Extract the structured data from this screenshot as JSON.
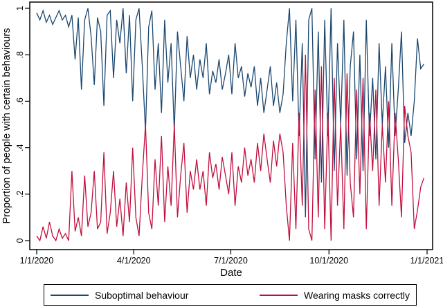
{
  "figure": {
    "background": "#ffffff",
    "axis_color": "#000000"
  },
  "chart_data": {
    "type": "line",
    "title": "",
    "xlabel": "Date",
    "ylabel": "Proportion of people with certain behaviours",
    "xlim_days": [
      0,
      366
    ],
    "ylim": [
      0,
      1
    ],
    "grid": false,
    "legend_position": "bottom",
    "x_tick_days": [
      0,
      91,
      182,
      274,
      366
    ],
    "x_tick_labels": [
      "1/1/2020",
      "4/1/2020",
      "7/1/2020",
      "10/1/2020",
      "1/1/2021"
    ],
    "y_ticks": [
      0,
      0.2,
      0.4,
      0.6,
      0.8,
      1
    ],
    "y_tick_labels": [
      "0",
      ".2",
      ".4",
      ".6",
      ".8",
      "1"
    ],
    "sampling_note": "daily survey series approximated at 3-day intervals starting 1/1/2020",
    "series": [
      {
        "name": "Suboptimal behaviour",
        "color": "#1a476f",
        "days_step": 3,
        "values": [
          0.98,
          0.95,
          0.99,
          0.94,
          0.97,
          0.93,
          0.96,
          0.99,
          0.95,
          0.97,
          0.92,
          0.97,
          0.78,
          0.96,
          0.65,
          0.95,
          1.0,
          0.88,
          0.67,
          0.96,
          0.9,
          0.58,
          0.97,
          0.99,
          0.7,
          0.95,
          0.85,
          1.0,
          0.72,
          0.97,
          0.6,
          0.95,
          1.0,
          0.75,
          0.47,
          0.92,
          0.99,
          0.65,
          0.85,
          0.55,
          0.95,
          0.68,
          0.85,
          0.47,
          0.9,
          0.75,
          0.6,
          0.88,
          0.7,
          0.8,
          0.65,
          0.78,
          0.7,
          0.85,
          0.63,
          0.73,
          0.68,
          0.78,
          0.65,
          0.72,
          0.8,
          0.63,
          0.85,
          0.7,
          0.75,
          0.62,
          0.72,
          0.66,
          0.75,
          0.58,
          0.7,
          0.55,
          0.65,
          0.75,
          0.58,
          0.68,
          0.55,
          0.63,
          0.85,
          1.0,
          0.6,
          0.95,
          0.45,
          0.85,
          0.1,
          0.95,
          1.0,
          0.35,
          0.9,
          0.25,
          0.95,
          0.45,
          1.0,
          0.3,
          0.85,
          0.5,
          0.95,
          0.28,
          0.75,
          0.9,
          0.35,
          0.8,
          0.3,
          0.95,
          0.45,
          0.7,
          0.35,
          0.85,
          0.5,
          0.75,
          0.4,
          0.85,
          0.45,
          0.65,
          0.9,
          0.42,
          0.55,
          0.45,
          0.6,
          0.87,
          0.74,
          0.76
        ]
      },
      {
        "name": "Wearing masks correctly",
        "color": "#c10e3d",
        "days_step": 3,
        "values": [
          0.02,
          0.0,
          0.06,
          0.01,
          0.08,
          0.02,
          0.0,
          0.05,
          0.01,
          0.03,
          0.0,
          0.3,
          0.04,
          0.1,
          0.02,
          0.28,
          0.06,
          0.12,
          0.3,
          0.05,
          0.08,
          0.38,
          0.03,
          0.12,
          0.3,
          0.06,
          0.18,
          0.02,
          0.25,
          0.08,
          0.4,
          0.1,
          0.02,
          0.28,
          0.5,
          0.12,
          0.05,
          0.35,
          0.15,
          0.45,
          0.08,
          0.32,
          0.15,
          0.5,
          0.1,
          0.28,
          0.42,
          0.12,
          0.3,
          0.22,
          0.35,
          0.22,
          0.3,
          0.15,
          0.38,
          0.27,
          0.33,
          0.22,
          0.36,
          0.28,
          0.2,
          0.38,
          0.15,
          0.32,
          0.25,
          0.4,
          0.28,
          0.35,
          0.25,
          0.42,
          0.3,
          0.46,
          0.35,
          0.25,
          0.43,
          0.32,
          0.46,
          0.38,
          0.15,
          0.0,
          0.42,
          0.05,
          0.55,
          0.15,
          0.8,
          0.05,
          0.0,
          0.65,
          0.1,
          0.75,
          0.05,
          0.55,
          0.0,
          0.7,
          0.15,
          0.5,
          0.05,
          0.72,
          0.25,
          0.1,
          0.65,
          0.2,
          0.7,
          0.05,
          0.55,
          0.3,
          0.65,
          0.15,
          0.5,
          0.25,
          0.6,
          0.15,
          0.55,
          0.35,
          0.1,
          0.58,
          0.45,
          0.38,
          0.05,
          0.13,
          0.23,
          0.27
        ]
      }
    ]
  }
}
